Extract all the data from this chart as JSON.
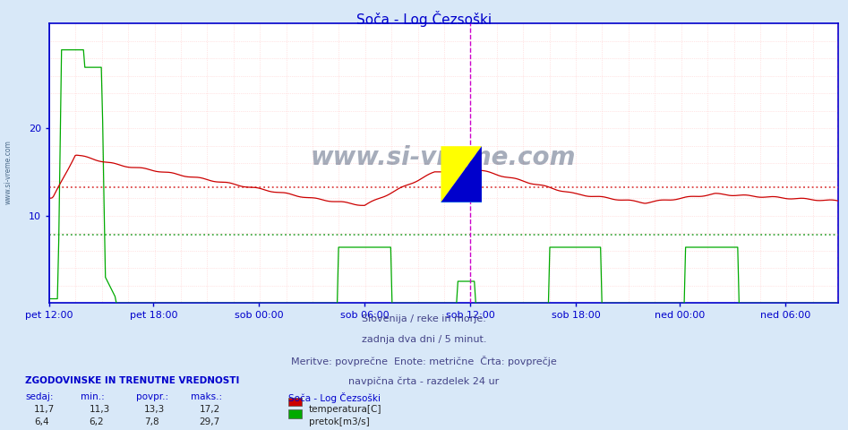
{
  "title": "Soča - Log Čezsoški",
  "bg_color": "#d8e8f8",
  "plot_bg_color": "#ffffff",
  "axis_color": "#0000cc",
  "text_color": "#0000cc",
  "subtitle_lines": [
    "Slovenija / reke in morje.",
    "zadnja dva dni / 5 minut.",
    "Meritve: povprečne  Enote: metrične  Črta: povprečje",
    "navpična črta - razdelek 24 ur"
  ],
  "xlabel_ticks": [
    "pet 12:00",
    "pet 18:00",
    "sob 00:00",
    "sob 06:00",
    "sob 12:00",
    "sob 18:00",
    "ned 00:00",
    "ned 06:00"
  ],
  "ylim": [
    0,
    32
  ],
  "yticks": [
    10,
    20
  ],
  "temp_avg": 13.3,
  "flow_avg": 7.8,
  "watermark": "www.si-vreme.com",
  "legend_title": "Soča - Log Čezsoški",
  "legend_items": [
    {
      "label": "temperatura[C]",
      "color": "#cc0000"
    },
    {
      "label": "pretok[m3/s]",
      "color": "#00aa00"
    }
  ],
  "stats_header": "ZGODOVINSKE IN TRENUTNE VREDNOSTI",
  "stats_cols": [
    "sedaj:",
    "min.:",
    "povpr.:",
    "maks.:"
  ],
  "stats_rows": [
    [
      "11,7",
      "11,3",
      "13,3",
      "17,2"
    ],
    [
      "6,4",
      "6,2",
      "7,8",
      "29,7"
    ]
  ],
  "n_points": 576,
  "temp_color": "#cc0000",
  "flow_color": "#00aa00",
  "temp_avg_color": "#dd4444",
  "flow_avg_color": "#44aa44",
  "vgrid_color": "#ffcccc",
  "hgrid_color": "#ffcccc",
  "magenta_vline_color": "#cc00cc",
  "blue_vline_color": "#0000cc"
}
